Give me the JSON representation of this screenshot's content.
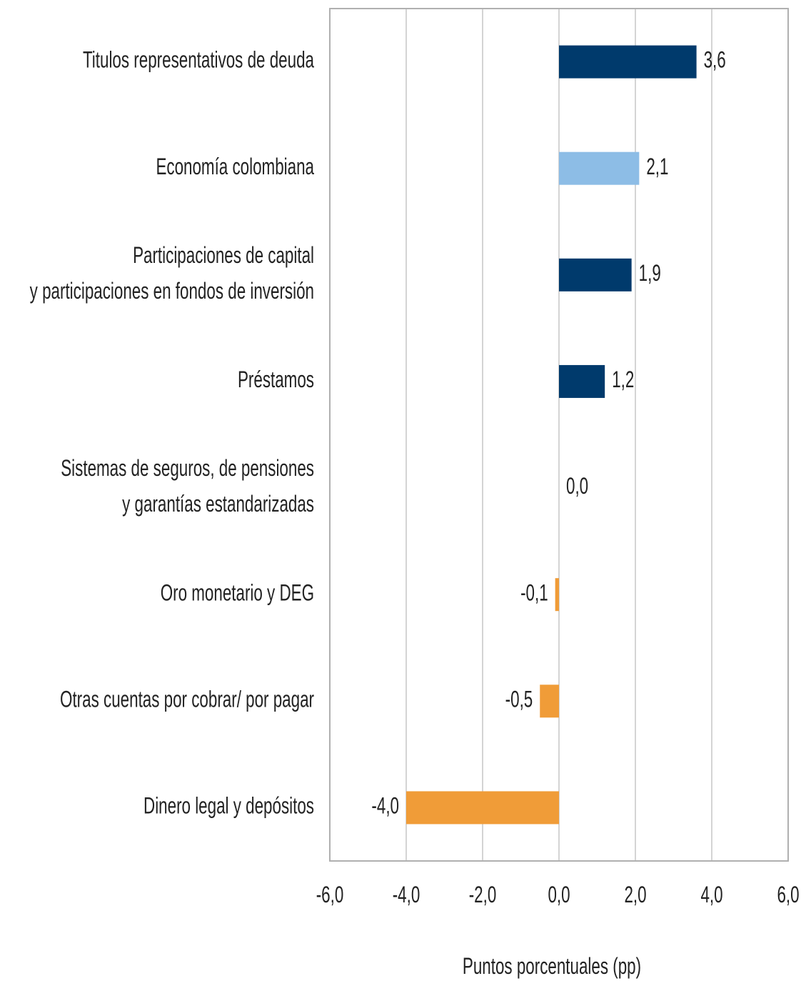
{
  "chart_data": {
    "type": "hbar",
    "categories": [
      "Titulos representativos de deuda",
      "Economía colombiana",
      "Participaciones de capital\ny participaciones en fondos de inversión",
      "Préstamos",
      "Sistemas de seguros, de pensiones\ny garantías estandarizadas",
      "Oro monetario y DEG",
      "Otras cuentas por cobrar/ por pagar",
      "Dinero legal y depósitos"
    ],
    "values": [
      3.6,
      2.1,
      1.9,
      1.2,
      0.0,
      -0.1,
      -0.5,
      -4.0
    ],
    "value_labels": [
      "3,6",
      "2,1",
      "1,9",
      "1,2",
      "0,0",
      "-0,1",
      "-0,5",
      "-4,0"
    ],
    "colors": [
      "#003a6c",
      "#8dbde6",
      "#003a6c",
      "#003a6c",
      "#003a6c",
      "#f09c38",
      "#f09c38",
      "#f09c38"
    ],
    "xlim": [
      -6,
      6
    ],
    "xticks": [
      {
        "value": -6,
        "label": "-6,0"
      },
      {
        "value": -4,
        "label": "-4,0"
      },
      {
        "value": -2,
        "label": "-2,0"
      },
      {
        "value": 0,
        "label": "0,0"
      },
      {
        "value": 2,
        "label": "2,0"
      },
      {
        "value": 4,
        "label": "4,0"
      },
      {
        "value": 6,
        "label": "6,0"
      }
    ],
    "xlabel": "Puntos porcentuales (pp)",
    "grid": true
  }
}
